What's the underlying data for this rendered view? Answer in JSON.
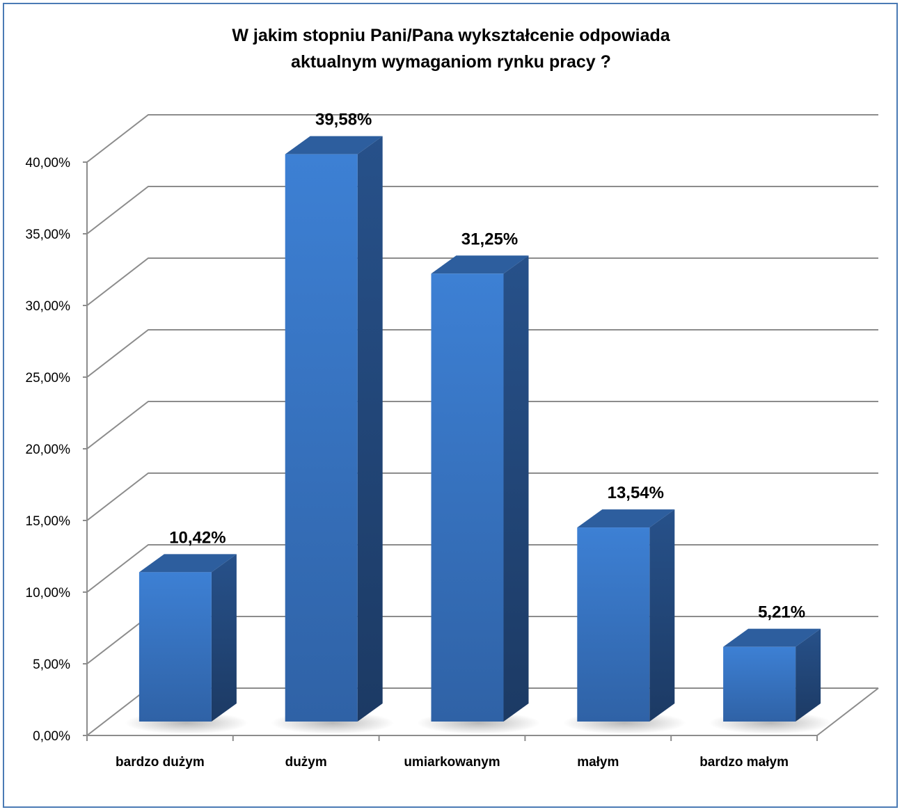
{
  "chart_data": {
    "type": "bar",
    "title": "W jakim stopniu Pani/Pana wykształcenie odpowiada\naktualnym wymaganiom rynku pracy ?",
    "categories": [
      "bardzo dużym",
      "dużym",
      "umiarkowanym",
      "małym",
      "bardzo małym"
    ],
    "values": [
      10.42,
      39.58,
      31.25,
      13.54,
      5.21
    ],
    "data_labels": [
      "10,42%",
      "39,58%",
      "31,25%",
      "13,54%",
      "5,21%"
    ],
    "y_ticks": [
      "0,00%",
      "5,00%",
      "10,00%",
      "15,00%",
      "20,00%",
      "25,00%",
      "30,00%",
      "35,00%",
      "40,00%"
    ],
    "ylim": [
      0,
      40
    ],
    "xlabel": "",
    "ylabel": "",
    "grid": true,
    "style": "3d-column",
    "colors": {
      "bar_front": "#3a78c9",
      "bar_side": "#234a7c",
      "bar_top": "#2d5e9e",
      "grid": "#8c8c8c",
      "border": "#4a7ab5"
    }
  }
}
